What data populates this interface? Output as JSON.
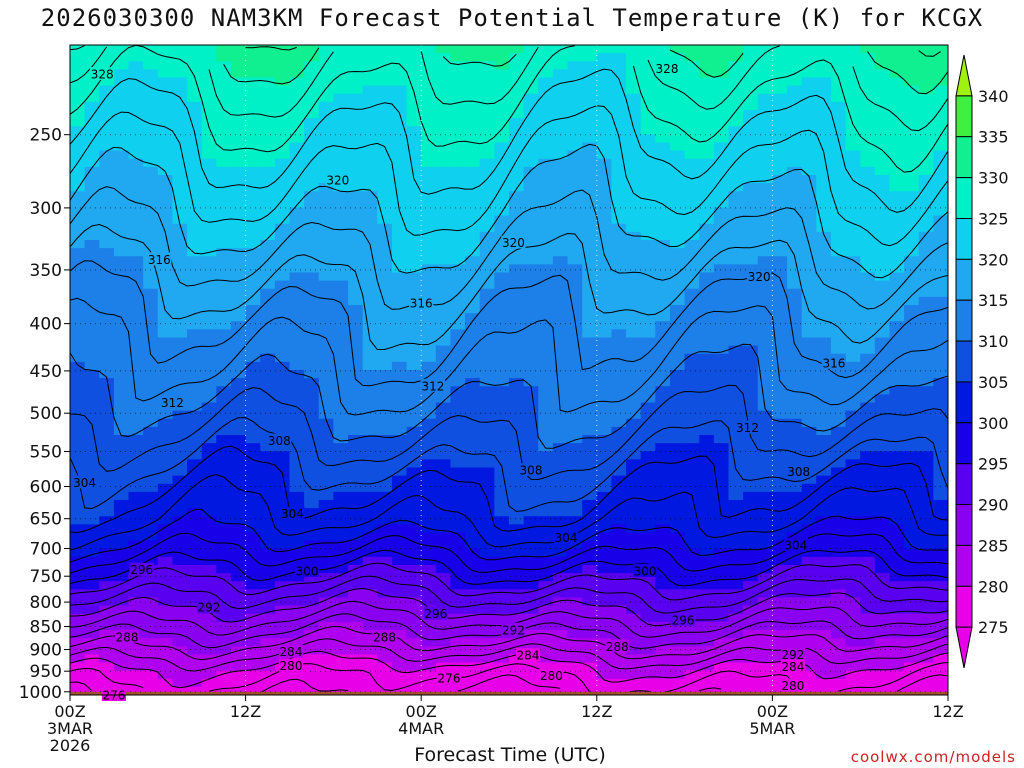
{
  "chart_data": {
    "type": "heatmap",
    "title": "2026030300 NAM3KM Forecast Potential Temperature (K) for KCGX",
    "xlabel": "Forecast Time (UTC)",
    "ylabel": "",
    "y_scale": "log-pressure",
    "ylim": [
      1000,
      200
    ],
    "xlim_hours": [
      0,
      60
    ],
    "y_ticks": [
      250,
      300,
      350,
      400,
      450,
      500,
      550,
      600,
      650,
      700,
      750,
      800,
      850,
      900,
      950,
      1000
    ],
    "x_ticks": [
      {
        "hour": 0,
        "lines": [
          "00Z",
          "3MAR",
          "2026"
        ]
      },
      {
        "hour": 12,
        "lines": [
          "12Z"
        ]
      },
      {
        "hour": 24,
        "lines": [
          "00Z",
          "4MAR"
        ]
      },
      {
        "hour": 36,
        "lines": [
          "12Z"
        ]
      },
      {
        "hour": 48,
        "lines": [
          "00Z",
          "5MAR"
        ]
      },
      {
        "hour": 60,
        "lines": [
          "12Z"
        ]
      }
    ],
    "grid": true,
    "colorbar": {
      "levels": [
        275,
        280,
        285,
        290,
        295,
        300,
        305,
        310,
        315,
        320,
        325,
        330,
        335,
        340
      ],
      "colors": [
        "#e800e8",
        "#b000f0",
        "#8a00f0",
        "#5a00f0",
        "#1800e8",
        "#0018e0",
        "#1050e0",
        "#1c80e8",
        "#20a8f0",
        "#10d0f0",
        "#00f0c8",
        "#10f090",
        "#40f040",
        "#a0f010"
      ]
    },
    "theta_profiles": [
      {
        "p": 1000,
        "theta": 276.5
      },
      {
        "p": 950,
        "theta": 279
      },
      {
        "p": 900,
        "theta": 283
      },
      {
        "p": 850,
        "theta": 287
      },
      {
        "p": 800,
        "theta": 291
      },
      {
        "p": 750,
        "theta": 295
      },
      {
        "p": 700,
        "theta": 299
      },
      {
        "p": 650,
        "theta": 302.5
      },
      {
        "p": 600,
        "theta": 304.5
      },
      {
        "p": 550,
        "theta": 307
      },
      {
        "p": 500,
        "theta": 309.5
      },
      {
        "p": 450,
        "theta": 312
      },
      {
        "p": 400,
        "theta": 314
      },
      {
        "p": 350,
        "theta": 317
      },
      {
        "p": 300,
        "theta": 320.5
      },
      {
        "p": 250,
        "theta": 324
      },
      {
        "p": 200,
        "theta": 329
      }
    ],
    "contour_labels": [
      {
        "hour": 2.2,
        "p": 215,
        "text": "328"
      },
      {
        "hour": 40.8,
        "p": 212,
        "text": "328"
      },
      {
        "hour": 18.3,
        "p": 280,
        "text": "320"
      },
      {
        "hour": 30.3,
        "p": 327,
        "text": "320"
      },
      {
        "hour": 47.1,
        "p": 356,
        "text": "320"
      },
      {
        "hour": 6.1,
        "p": 341,
        "text": "316"
      },
      {
        "hour": 24,
        "p": 380,
        "text": "316"
      },
      {
        "hour": 52.2,
        "p": 441,
        "text": "316"
      },
      {
        "hour": 7,
        "p": 487,
        "text": "312"
      },
      {
        "hour": 24.8,
        "p": 467,
        "text": "312"
      },
      {
        "hour": 46.3,
        "p": 518,
        "text": "312"
      },
      {
        "hour": 14.3,
        "p": 535,
        "text": "308"
      },
      {
        "hour": 31.5,
        "p": 576,
        "text": "308"
      },
      {
        "hour": 49.8,
        "p": 578,
        "text": "308"
      },
      {
        "hour": 1,
        "p": 594,
        "text": "304"
      },
      {
        "hour": 15.2,
        "p": 642,
        "text": "304"
      },
      {
        "hour": 33.9,
        "p": 681,
        "text": "304"
      },
      {
        "hour": 49.6,
        "p": 694,
        "text": "304"
      },
      {
        "hour": 4.9,
        "p": 738,
        "text": "296"
      },
      {
        "hour": 16.2,
        "p": 740,
        "text": "300"
      },
      {
        "hour": 39.3,
        "p": 740,
        "text": "300"
      },
      {
        "hour": 9.5,
        "p": 810,
        "text": "292"
      },
      {
        "hour": 25,
        "p": 823,
        "text": "296"
      },
      {
        "hour": 30.3,
        "p": 857,
        "text": "292"
      },
      {
        "hour": 41.9,
        "p": 836,
        "text": "296"
      },
      {
        "hour": 3.9,
        "p": 872,
        "text": "288"
      },
      {
        "hour": 21.5,
        "p": 872,
        "text": "288"
      },
      {
        "hour": 37.4,
        "p": 893,
        "text": "288"
      },
      {
        "hour": 15.1,
        "p": 905,
        "text": "284"
      },
      {
        "hour": 31.3,
        "p": 913,
        "text": "284"
      },
      {
        "hour": 49.4,
        "p": 911,
        "text": "292"
      },
      {
        "hour": 15.1,
        "p": 937,
        "text": "280"
      },
      {
        "hour": 49.4,
        "p": 939,
        "text": "284"
      },
      {
        "hour": 25.9,
        "p": 966,
        "text": "276"
      },
      {
        "hour": 32.9,
        "p": 960,
        "text": "280"
      },
      {
        "hour": 49.4,
        "p": 985,
        "text": "280"
      },
      {
        "hour": 3,
        "p": 1008,
        "text": "276"
      }
    ],
    "ground": {
      "color": "#a0522d"
    }
  },
  "footer": {
    "xlabel": "Forecast Time (UTC)",
    "credit": "coolwx.com/models"
  }
}
